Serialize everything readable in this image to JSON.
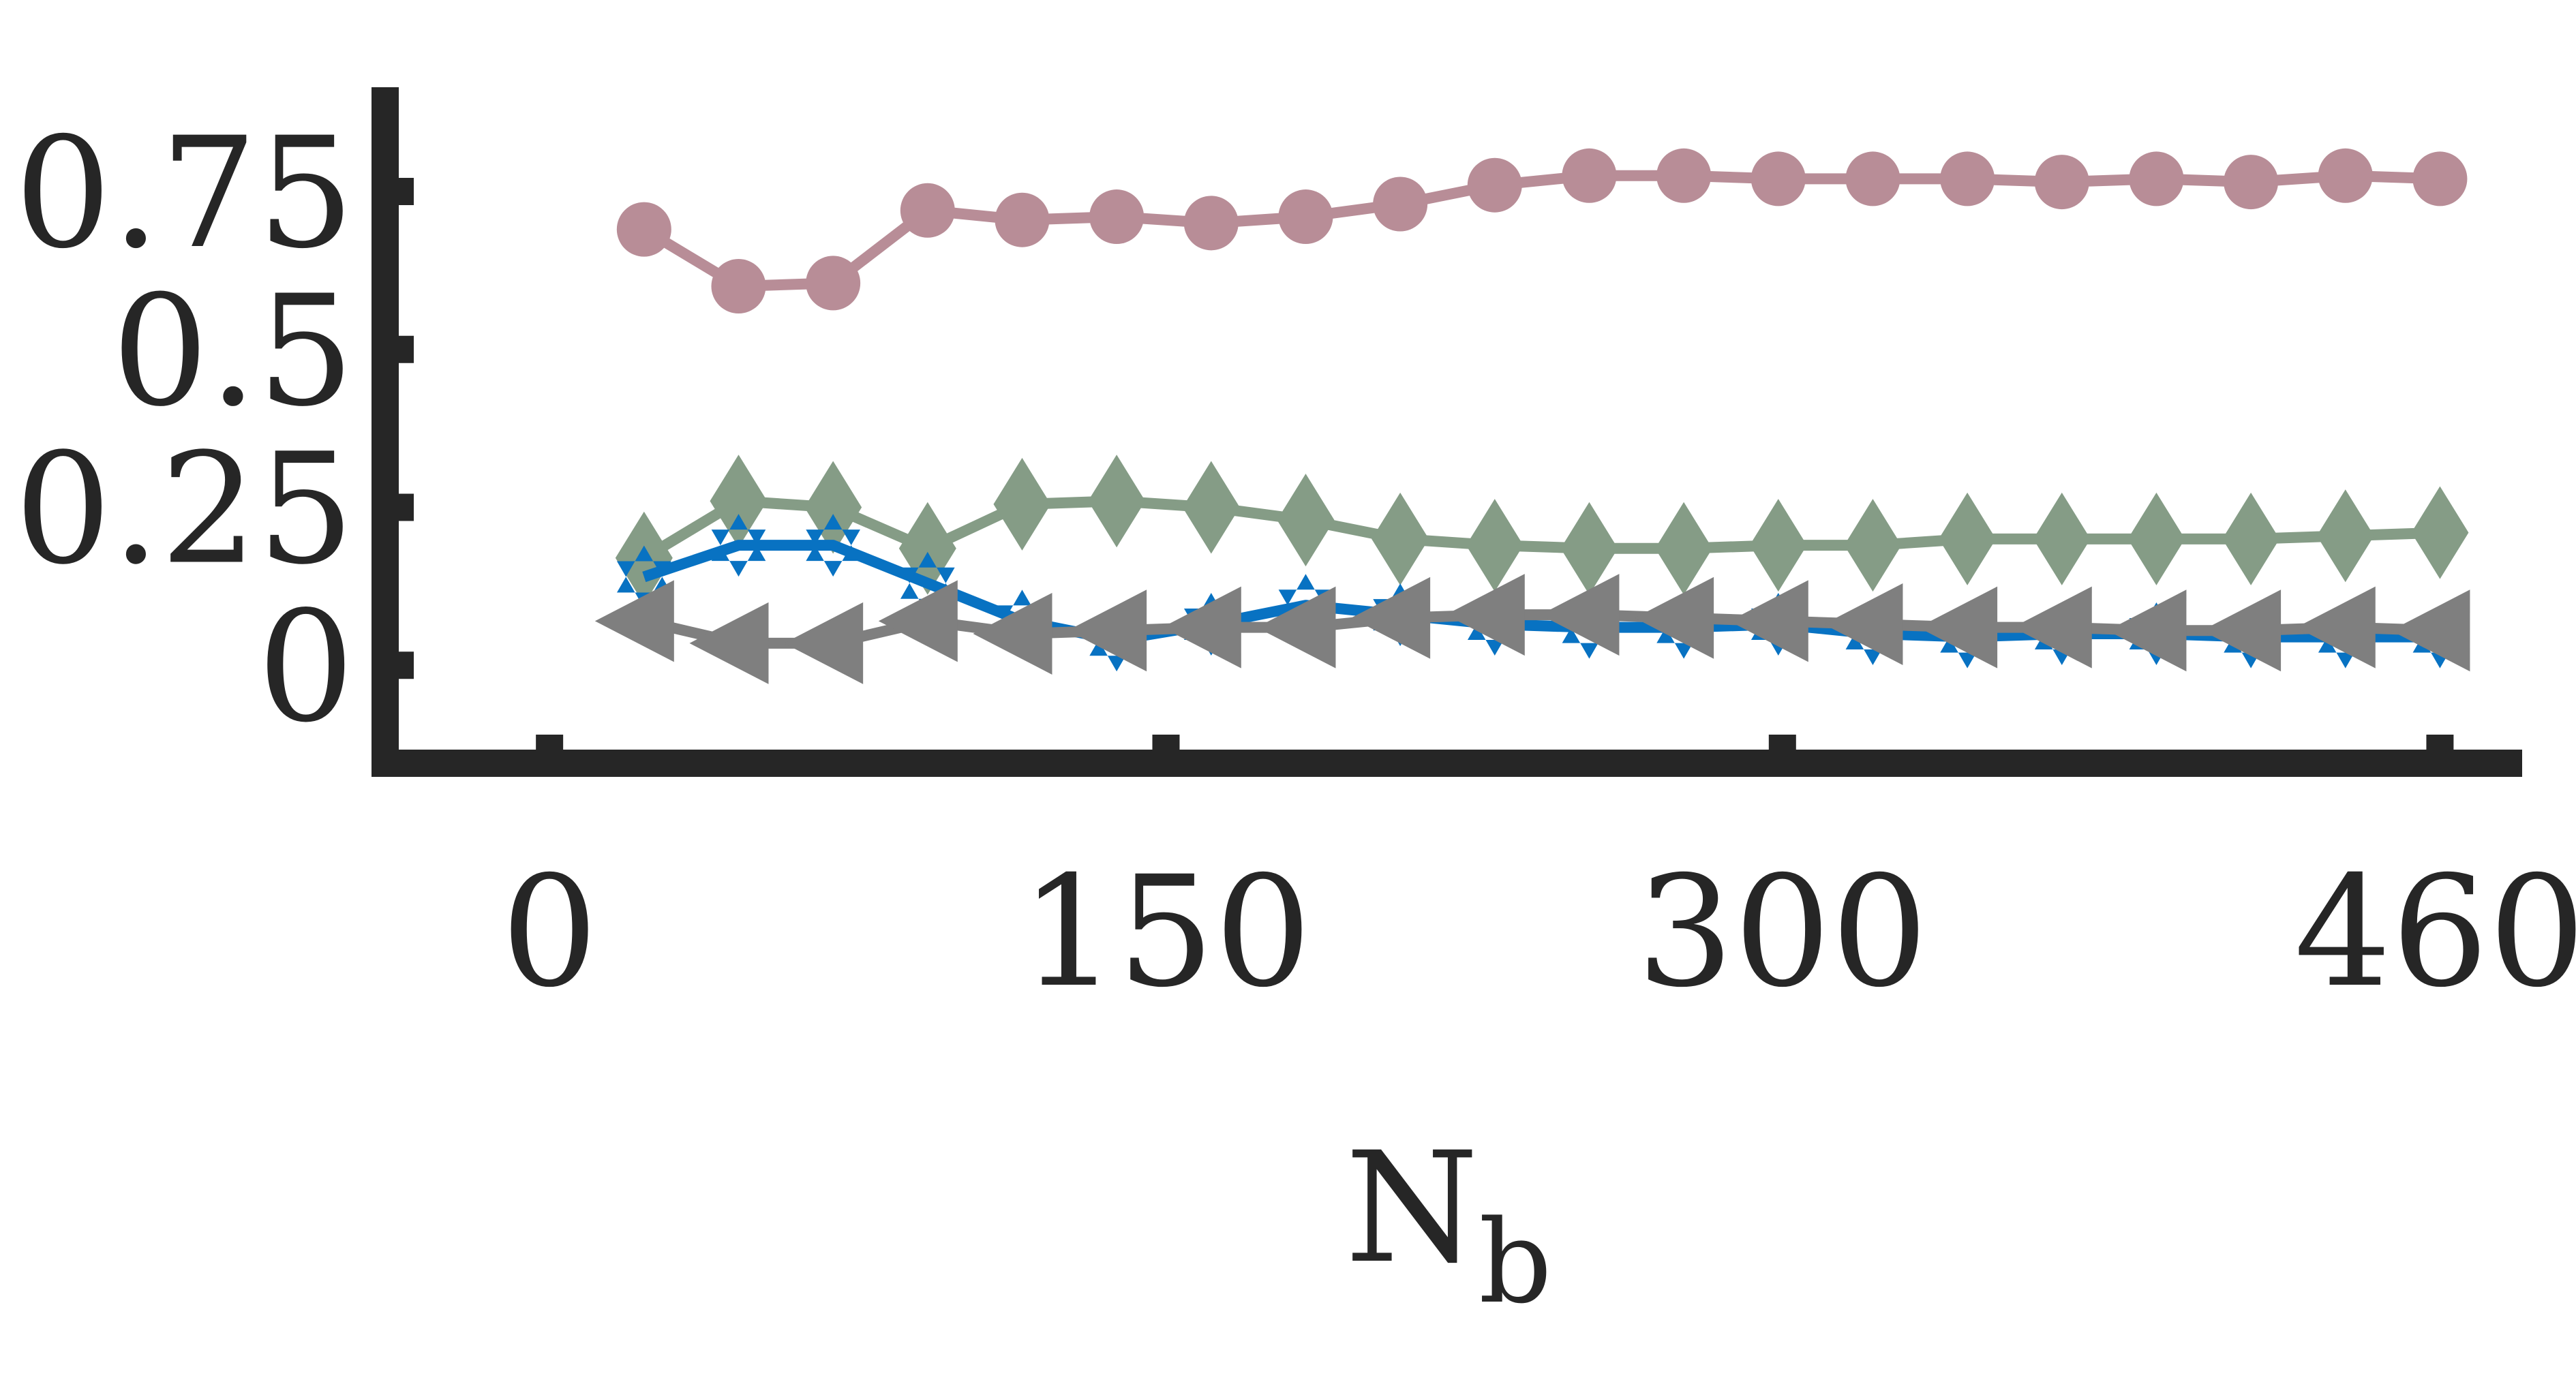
{
  "chart_data": {
    "type": "line",
    "title": "",
    "xlabel": "N",
    "xlabel_subscript": "b",
    "ylabel": "",
    "xlim": [
      -40,
      480
    ],
    "ylim": [
      -0.155,
      0.915
    ],
    "xticks": [
      0,
      150,
      300,
      460
    ],
    "xtick_labels": [
      "0",
      "150",
      "300",
      "460"
    ],
    "yticks": [
      0,
      0.25,
      0.5,
      0.75
    ],
    "ytick_labels": [
      "0",
      "0.25",
      "0.5",
      "0.75"
    ],
    "grid": false,
    "legend": "none",
    "x": [
      23,
      46,
      69,
      92,
      115,
      138,
      161,
      184,
      207,
      230,
      253,
      276,
      299,
      322,
      345,
      368,
      391,
      414,
      437,
      460
    ],
    "series": [
      {
        "values": [
          0.69,
          0.6,
          0.605,
          0.72,
          0.705,
          0.71,
          0.7,
          0.71,
          0.73,
          0.76,
          0.775,
          0.775,
          0.77,
          0.77,
          0.77,
          0.765,
          0.77,
          0.765,
          0.775,
          0.77
        ],
        "color": "#b88d97",
        "marker": "circle"
      },
      {
        "values": [
          0.17,
          0.26,
          0.25,
          0.185,
          0.255,
          0.26,
          0.25,
          0.23,
          0.2,
          0.19,
          0.185,
          0.185,
          0.19,
          0.19,
          0.2,
          0.2,
          0.2,
          0.2,
          0.205,
          0.21
        ],
        "color": "#859c86",
        "marker": "diamond"
      },
      {
        "values": [
          0.14,
          0.19,
          0.19,
          0.13,
          0.07,
          0.04,
          0.065,
          0.095,
          0.08,
          0.065,
          0.06,
          0.06,
          0.065,
          0.05,
          0.045,
          0.05,
          0.05,
          0.045,
          0.045,
          0.045
        ],
        "color": "#0872c2",
        "marker": "hexagram"
      },
      {
        "values": [
          0.07,
          0.035,
          0.035,
          0.07,
          0.05,
          0.055,
          0.06,
          0.06,
          0.075,
          0.08,
          0.08,
          0.075,
          0.07,
          0.065,
          0.06,
          0.06,
          0.055,
          0.055,
          0.06,
          0.055
        ],
        "color": "#7f7f7f",
        "marker": "triangle-left"
      }
    ],
    "axis_color": "#262626"
  }
}
